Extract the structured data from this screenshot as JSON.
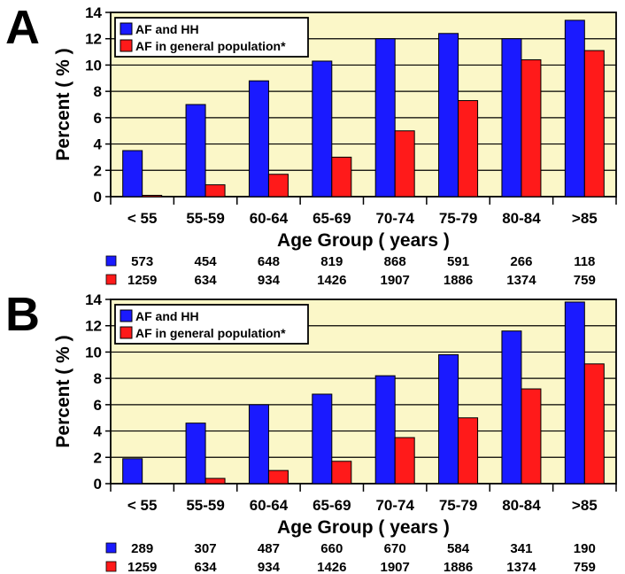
{
  "panels": [
    {
      "letter": "A",
      "counts": {
        "af_hh": [
          "573",
          "454",
          "648",
          "819",
          "868",
          "591",
          "266",
          "118"
        ],
        "general": [
          "1259",
          "634",
          "934",
          "1426",
          "1907",
          "1886",
          "1374",
          "759"
        ]
      }
    },
    {
      "letter": "B",
      "counts": {
        "af_hh": [
          "289",
          "307",
          "487",
          "660",
          "670",
          "584",
          "341",
          "190"
        ],
        "general": [
          "1259",
          "634",
          "934",
          "1426",
          "1907",
          "1886",
          "1374",
          "759"
        ]
      }
    }
  ],
  "chart_data": [
    {
      "type": "bar",
      "title": "",
      "xlabel": "Age Group ( years )",
      "ylabel": "Percent ( % )",
      "ylim": [
        0,
        14
      ],
      "yticks": [
        "0",
        "2",
        "4",
        "6",
        "8",
        "10",
        "12",
        "14"
      ],
      "categories": [
        "< 55",
        "55-59",
        "60-64",
        "65-69",
        "70-74",
        "75-79",
        "80-84",
        ">85"
      ],
      "series": [
        {
          "name": "AF and HH",
          "color": "#1a1aff",
          "values": [
            3.5,
            7.0,
            8.8,
            10.3,
            12.0,
            12.4,
            12.0,
            13.4
          ]
        },
        {
          "name": "AF in general population*",
          "color": "#ff1a1a",
          "values": [
            0.1,
            0.9,
            1.7,
            3.0,
            5.0,
            7.3,
            10.4,
            11.1
          ]
        }
      ],
      "grid": true,
      "legend": "top-left",
      "background": "#fbf7c8"
    },
    {
      "type": "bar",
      "title": "",
      "xlabel": "Age Group ( years )",
      "ylabel": "Percent ( % )",
      "ylim": [
        0,
        14
      ],
      "yticks": [
        "0",
        "2",
        "4",
        "6",
        "8",
        "10",
        "12",
        "14"
      ],
      "categories": [
        "< 55",
        "55-59",
        "60-64",
        "65-69",
        "70-74",
        "75-79",
        "80-84",
        ">85"
      ],
      "series": [
        {
          "name": "AF and HH",
          "color": "#1a1aff",
          "values": [
            1.9,
            4.6,
            6.0,
            6.8,
            8.2,
            9.8,
            11.6,
            13.8
          ]
        },
        {
          "name": "AF in general population*",
          "color": "#ff1a1a",
          "values": [
            0.0,
            0.4,
            1.0,
            1.7,
            3.5,
            5.0,
            7.2,
            9.1
          ]
        }
      ],
      "grid": true,
      "legend": "top-left",
      "background": "#fbf7c8"
    }
  ]
}
